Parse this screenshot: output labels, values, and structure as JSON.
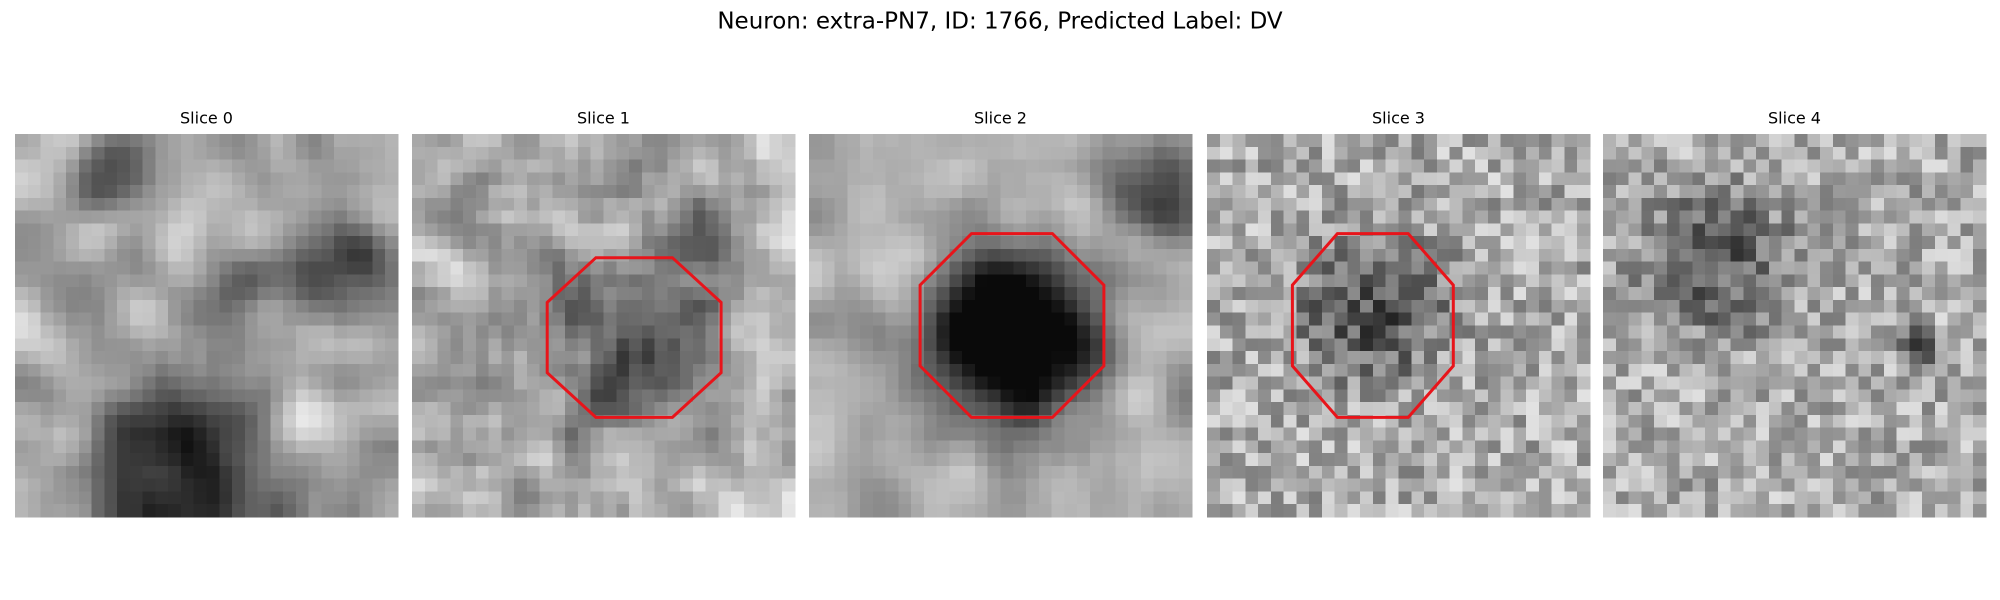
{
  "title": "Neuron: extra-PN7, ID: 1766, Predicted Label: DV",
  "panels": [
    {
      "title": "Slice 0"
    },
    {
      "title": "Slice 1"
    },
    {
      "title": "Slice 2"
    },
    {
      "title": "Slice 3"
    },
    {
      "title": "Slice 4"
    }
  ]
}
